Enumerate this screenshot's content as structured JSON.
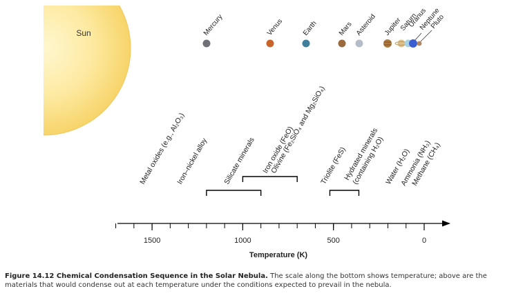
{
  "sun": {
    "label": "Sun"
  },
  "planets": [
    {
      "name": "Mercury",
      "color": "#6f6f78"
    },
    {
      "name": "Venus",
      "color": "#c8642a"
    },
    {
      "name": "Earth",
      "color": "#3f7f9c"
    },
    {
      "name": "Mars",
      "color": "#9a6a3e"
    },
    {
      "name": "Asteroid",
      "color": "#b4bcc8"
    },
    {
      "name": "Jupiter",
      "color": "#b07a40"
    },
    {
      "name": "Saturn",
      "color": "#ddc08a"
    },
    {
      "name": "Uranus",
      "color": "#a9d2df"
    },
    {
      "name": "Neptune",
      "color": "#3b5fd1"
    },
    {
      "name": "Pluto",
      "color": "#b08a68"
    }
  ],
  "materials": [
    {
      "text": "Metal oxides (e.g., Al₂O₃)"
    },
    {
      "text": "Iron–nickel alloy"
    },
    {
      "text": "Silicate minerals"
    },
    {
      "text": "Iron oxide (FeO)"
    },
    {
      "text": "Olivine (Fe₂SiO₄ and Mg₂SiO₄)"
    },
    {
      "text": "Triolite (FeS)"
    },
    {
      "text": "Hydrated minerals"
    },
    {
      "text": "(containing H₂O)"
    },
    {
      "text": "Water (H₂O)"
    },
    {
      "text": "Ammonia (NH₃)"
    },
    {
      "text": "Methane (CH₄)"
    }
  ],
  "axis": {
    "label": "Temperature (K)",
    "ticks": [
      {
        "value": 1500,
        "label": "1500"
      },
      {
        "value": 1000,
        "label": "1000"
      },
      {
        "value": 500,
        "label": "500"
      },
      {
        "value": 0,
        "label": "0"
      }
    ]
  },
  "ranges": [
    {
      "from": 1200,
      "to": 900
    },
    {
      "from": 1000,
      "to": 700
    },
    {
      "from": 520,
      "to": 360
    }
  ],
  "caption": {
    "title": "Figure 14.12 Chemical Condensation Sequence in the Solar Nebula.",
    "text": " The scale along the bottom shows temperature; above are the materials that would condense out at each temperature under the conditions expected to prevail in the nebula."
  }
}
